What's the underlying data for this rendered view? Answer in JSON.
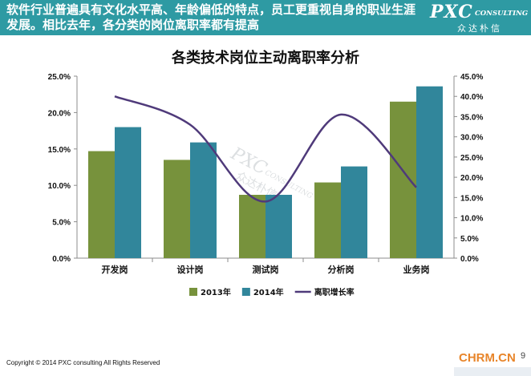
{
  "banner": {
    "text": "软件行业普遍具有文化水平高、年龄偏低的特点，员工更重视自身的职业生涯发展。相比去年，各分类的岗位离职率都有提高",
    "logo_main": "PXC",
    "logo_sub": "CONSULTING",
    "logo_cn": "众达朴信"
  },
  "footer": {
    "copyright": "Copyright © 2014  PXC consulting All Rights Reserved",
    "site": "CHRM.CN",
    "slide_number": "9"
  },
  "watermark": {
    "main": "PXC",
    "sub": "CONSULTING",
    "cn": "众达朴信"
  },
  "chart_data": {
    "type": "bar",
    "title": "各类技术岗位主动离职率分析",
    "categories": [
      "开发岗",
      "设计岗",
      "测试岗",
      "分析岗",
      "业务岗"
    ],
    "series": [
      {
        "name": "2013年",
        "kind": "bar",
        "axis": "left",
        "color": "#77923c",
        "values": [
          14.7,
          13.5,
          8.7,
          10.4,
          21.5
        ]
      },
      {
        "name": "2014年",
        "kind": "bar",
        "axis": "left",
        "color": "#31869b",
        "values": [
          18.0,
          15.9,
          8.7,
          12.6,
          23.6
        ]
      },
      {
        "name": "离职增长率",
        "kind": "line",
        "axis": "right",
        "color": "#4f3a7a",
        "smooth": true,
        "values": [
          40.0,
          33.0,
          14.0,
          35.5,
          17.5
        ]
      }
    ],
    "y_left": {
      "min": 0,
      "max": 25,
      "step": 5,
      "ticks": [
        "0.0%",
        "5.0%",
        "10.0%",
        "15.0%",
        "20.0%",
        "25.0%"
      ]
    },
    "y_right": {
      "min": 0,
      "max": 45,
      "step": 5,
      "ticks": [
        "0.0%",
        "5.0%",
        "10.0%",
        "15.0%",
        "20.0%",
        "25.0%",
        "30.0%",
        "35.0%",
        "40.0%",
        "45.0%"
      ]
    },
    "grid": false,
    "legend_position": "bottom"
  }
}
